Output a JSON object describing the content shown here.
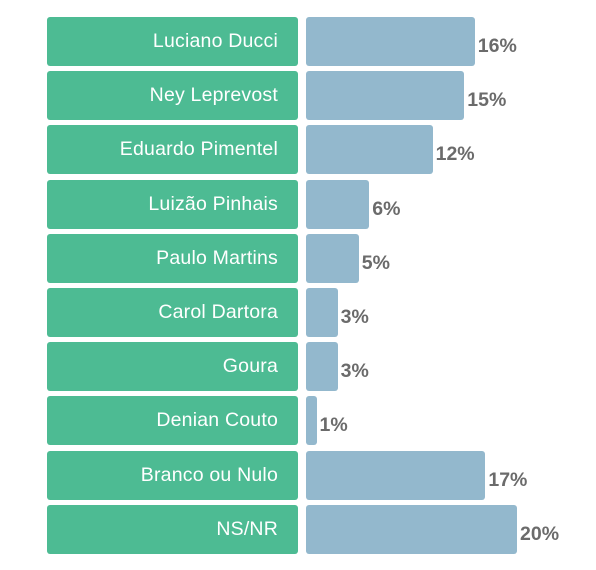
{
  "colors": {
    "label_box": "#4dbb93",
    "bar": "#93b8cd",
    "value_text": "#6b6b6b"
  },
  "chart_data": {
    "type": "bar",
    "orientation": "horizontal",
    "categories": [
      "Luciano Ducci",
      "Ney Leprevost",
      "Eduardo Pimentel",
      "Luizão Pinhais",
      "Paulo Martins",
      "Carol Dartora",
      "Goura",
      "Denian Couto",
      "Branco ou Nulo",
      "NS/NR"
    ],
    "values": [
      16,
      15,
      12,
      6,
      5,
      3,
      3,
      1,
      17,
      20
    ],
    "value_labels": [
      "16%",
      "15%",
      "12%",
      "6%",
      "5%",
      "3%",
      "3%",
      "1%",
      "17%",
      "20%"
    ],
    "unit": "%",
    "xlim": [
      0,
      20
    ],
    "grid": false,
    "legend": "none"
  }
}
